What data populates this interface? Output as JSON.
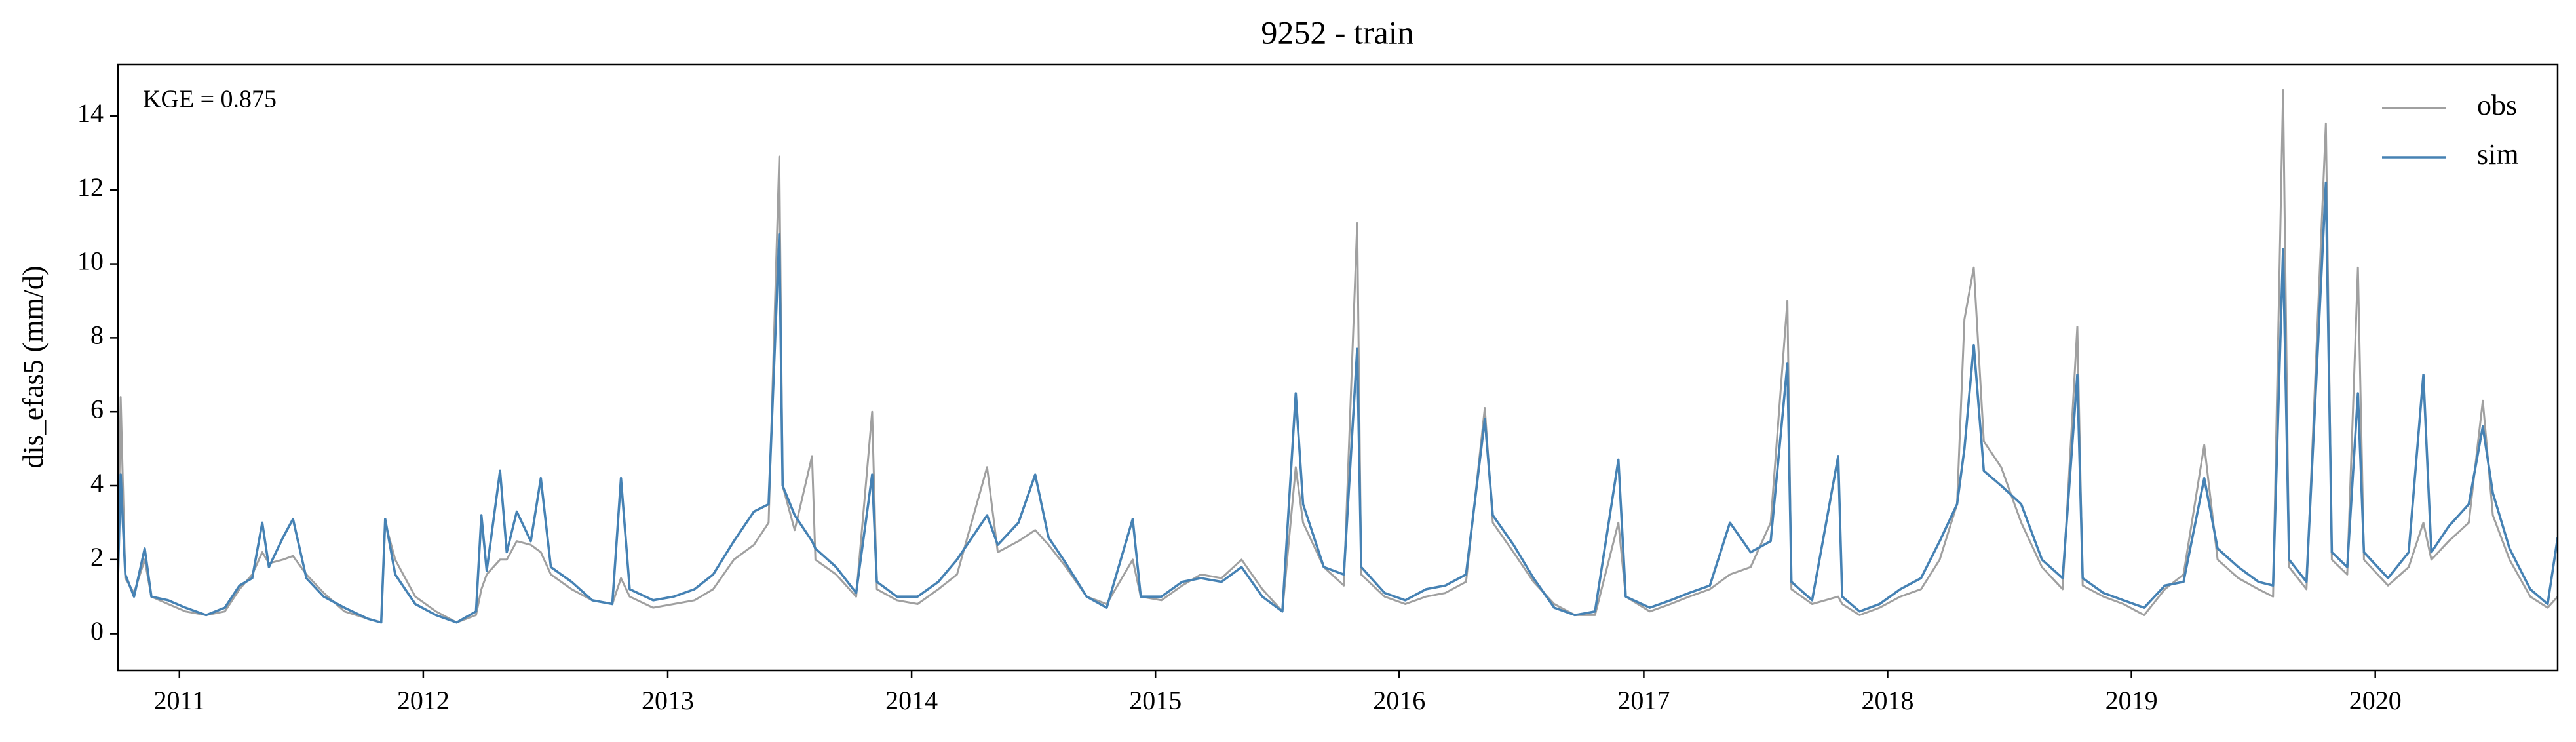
{
  "chart_data": {
    "type": "line",
    "title": "9252 - train",
    "ylabel": "dis_efas5 (mm/d)",
    "annotation": "KGE = 0.875",
    "legend": "upper right",
    "xlim": [
      "2010-10-01",
      "2020-09-30"
    ],
    "ylim": [
      -1,
      15.4
    ],
    "yticks": [
      0,
      2,
      4,
      6,
      8,
      10,
      12,
      14
    ],
    "xticks": [
      {
        "value": "2011-01-01",
        "label": "2011"
      },
      {
        "value": "2012-01-01",
        "label": "2012"
      },
      {
        "value": "2013-01-01",
        "label": "2013"
      },
      {
        "value": "2014-01-01",
        "label": "2014"
      },
      {
        "value": "2015-01-01",
        "label": "2015"
      },
      {
        "value": "2016-01-01",
        "label": "2016"
      },
      {
        "value": "2017-01-01",
        "label": "2017"
      },
      {
        "value": "2018-01-01",
        "label": "2018"
      },
      {
        "value": "2019-01-01",
        "label": "2019"
      },
      {
        "value": "2020-01-01",
        "label": "2020"
      }
    ],
    "x": [
      "2010-10-01",
      "2010-10-05",
      "2010-10-12",
      "2010-10-25",
      "2010-11-10",
      "2010-11-20",
      "2010-12-15",
      "2011-01-10",
      "2011-02-10",
      "2011-03-10",
      "2011-04-01",
      "2011-04-20",
      "2011-05-05",
      "2011-05-15",
      "2011-06-05",
      "2011-06-20",
      "2011-07-10",
      "2011-08-05",
      "2011-09-05",
      "2011-10-10",
      "2011-10-30",
      "2011-11-05",
      "2011-11-20",
      "2011-12-20",
      "2012-01-20",
      "2012-02-20",
      "2012-03-20",
      "2012-03-28",
      "2012-04-05",
      "2012-04-25",
      "2012-05-05",
      "2012-05-20",
      "2012-06-10",
      "2012-06-25",
      "2012-07-10",
      "2012-08-10",
      "2012-09-10",
      "2012-10-10",
      "2012-10-23",
      "2012-11-05",
      "2012-12-10",
      "2013-01-10",
      "2013-02-10",
      "2013-03-10",
      "2013-04-10",
      "2013-05-10",
      "2013-06-01",
      "2013-06-17",
      "2013-06-22",
      "2013-07-10",
      "2013-08-05",
      "2013-08-10",
      "2013-09-10",
      "2013-10-10",
      "2013-11-03",
      "2013-11-10",
      "2013-12-10",
      "2014-01-10",
      "2014-02-10",
      "2014-03-10",
      "2014-04-24",
      "2014-05-10",
      "2014-06-10",
      "2014-07-05",
      "2014-07-25",
      "2014-08-20",
      "2014-09-20",
      "2014-10-20",
      "2014-11-28",
      "2014-12-10",
      "2015-01-10",
      "2015-02-10",
      "2015-03-10",
      "2015-04-10",
      "2015-05-10",
      "2015-06-10",
      "2015-07-10",
      "2015-07-30",
      "2015-08-10",
      "2015-09-10",
      "2015-10-10",
      "2015-10-30",
      "2015-11-05",
      "2015-12-10",
      "2016-01-10",
      "2016-02-10",
      "2016-03-10",
      "2016-04-10",
      "2016-05-08",
      "2016-05-20",
      "2016-06-20",
      "2016-07-20",
      "2016-08-20",
      "2016-09-20",
      "2016-10-20",
      "2016-11-24",
      "2016-12-05",
      "2017-01-10",
      "2017-02-10",
      "2017-03-10",
      "2017-04-10",
      "2017-05-10",
      "2017-06-10",
      "2017-07-10",
      "2017-08-04",
      "2017-08-10",
      "2017-09-10",
      "2017-10-19",
      "2017-10-25",
      "2017-11-20",
      "2017-12-20",
      "2018-01-20",
      "2018-02-20",
      "2018-03-20",
      "2018-04-15",
      "2018-04-26",
      "2018-05-10",
      "2018-05-25",
      "2018-06-20",
      "2018-07-20",
      "2018-08-20",
      "2018-09-20",
      "2018-10-12",
      "2018-10-20",
      "2018-11-20",
      "2018-12-20",
      "2019-01-20",
      "2019-02-20",
      "2019-03-20",
      "2019-04-20",
      "2019-05-10",
      "2019-06-10",
      "2019-07-10",
      "2019-08-01",
      "2019-08-16",
      "2019-08-25",
      "2019-09-20",
      "2019-10-19",
      "2019-10-28",
      "2019-11-20",
      "2019-12-06",
      "2019-12-15",
      "2020-01-20",
      "2020-02-20",
      "2020-03-13",
      "2020-03-25",
      "2020-04-20",
      "2020-05-20",
      "2020-06-10",
      "2020-06-25",
      "2020-07-20",
      "2020-08-20",
      "2020-09-15",
      "2020-09-30"
    ],
    "series": [
      {
        "name": "obs",
        "color": "#a0a0a0",
        "values": [
          1.8,
          6.4,
          1.5,
          1.1,
          2.0,
          1.0,
          0.8,
          0.6,
          0.5,
          0.6,
          1.2,
          1.6,
          2.2,
          1.9,
          2.0,
          2.1,
          1.6,
          1.1,
          0.6,
          0.4,
          0.3,
          3.0,
          2.0,
          1.0,
          0.6,
          0.3,
          0.5,
          1.2,
          1.6,
          2.0,
          2.0,
          2.5,
          2.4,
          2.2,
          1.6,
          1.2,
          0.9,
          0.8,
          1.5,
          1.0,
          0.7,
          0.8,
          0.9,
          1.2,
          2.0,
          2.4,
          3.0,
          12.9,
          4.0,
          2.8,
          4.8,
          2.0,
          1.6,
          1.0,
          6.0,
          1.2,
          0.9,
          0.8,
          1.2,
          1.6,
          4.5,
          2.2,
          2.5,
          2.8,
          2.4,
          1.8,
          1.0,
          0.8,
          2.0,
          1.0,
          0.9,
          1.3,
          1.6,
          1.5,
          2.0,
          1.2,
          0.6,
          4.5,
          3.0,
          1.8,
          1.3,
          11.1,
          1.6,
          1.0,
          0.8,
          1.0,
          1.1,
          1.4,
          6.1,
          3.0,
          2.2,
          1.4,
          0.8,
          0.5,
          0.5,
          3.0,
          1.0,
          0.6,
          0.8,
          1.0,
          1.2,
          1.6,
          1.8,
          3.0,
          9.0,
          1.2,
          0.8,
          1.0,
          0.8,
          0.5,
          0.7,
          1.0,
          1.2,
          2.0,
          3.5,
          8.5,
          9.9,
          5.2,
          4.5,
          3.0,
          1.8,
          1.2,
          8.3,
          1.3,
          1.0,
          0.8,
          0.5,
          1.2,
          1.6,
          5.1,
          2.0,
          1.5,
          1.2,
          1.0,
          14.7,
          1.8,
          1.2,
          13.8,
          2.0,
          1.6,
          9.9,
          2.0,
          1.3,
          1.8,
          3.0,
          2.0,
          2.5,
          3.0,
          6.3,
          3.2,
          2.0,
          1.0,
          0.7,
          1.0
        ]
      },
      {
        "name": "sim",
        "color": "#4682b4",
        "values": [
          1.5,
          4.3,
          1.6,
          1.0,
          2.3,
          1.0,
          0.9,
          0.7,
          0.5,
          0.7,
          1.3,
          1.5,
          3.0,
          1.8,
          2.6,
          3.1,
          1.5,
          1.0,
          0.7,
          0.4,
          0.3,
          3.1,
          1.6,
          0.8,
          0.5,
          0.3,
          0.6,
          3.2,
          1.7,
          4.4,
          2.2,
          3.3,
          2.5,
          4.2,
          1.8,
          1.4,
          0.9,
          0.8,
          4.2,
          1.2,
          0.9,
          1.0,
          1.2,
          1.6,
          2.5,
          3.3,
          3.5,
          10.8,
          4.0,
          3.2,
          2.5,
          2.3,
          1.8,
          1.1,
          4.3,
          1.4,
          1.0,
          1.0,
          1.4,
          2.0,
          3.2,
          2.4,
          3.0,
          4.3,
          2.6,
          1.9,
          1.0,
          0.7,
          3.1,
          1.0,
          1.0,
          1.4,
          1.5,
          1.4,
          1.8,
          1.0,
          0.6,
          6.5,
          3.5,
          1.8,
          1.6,
          7.7,
          1.8,
          1.1,
          0.9,
          1.2,
          1.3,
          1.6,
          5.8,
          3.2,
          2.4,
          1.5,
          0.7,
          0.5,
          0.6,
          4.7,
          1.0,
          0.7,
          0.9,
          1.1,
          1.3,
          3.0,
          2.2,
          2.5,
          7.3,
          1.4,
          0.9,
          4.8,
          1.0,
          0.6,
          0.8,
          1.2,
          1.5,
          2.5,
          3.5,
          5.0,
          7.8,
          4.4,
          4.0,
          3.5,
          2.0,
          1.5,
          7.0,
          1.5,
          1.1,
          0.9,
          0.7,
          1.3,
          1.4,
          4.2,
          2.3,
          1.8,
          1.4,
          1.3,
          10.4,
          2.0,
          1.4,
          12.2,
          2.2,
          1.8,
          6.5,
          2.2,
          1.5,
          2.2,
          7.0,
          2.2,
          2.9,
          3.5,
          5.6,
          3.8,
          2.3,
          1.2,
          0.8,
          2.6
        ]
      }
    ]
  }
}
